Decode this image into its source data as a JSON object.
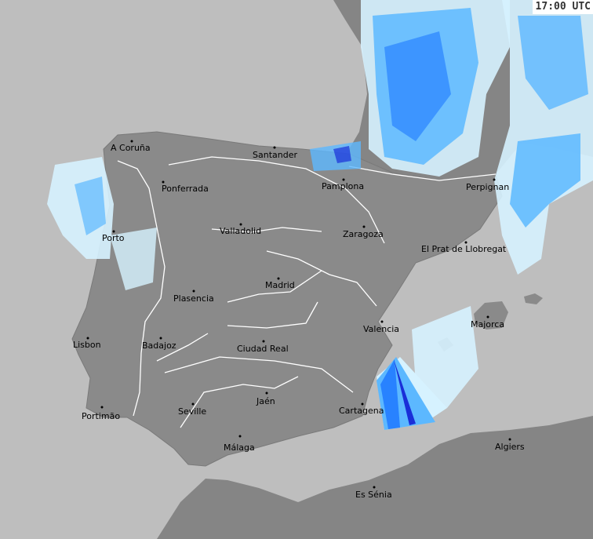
{
  "timestamp": "17:00 UTC",
  "colors": {
    "sea": "#bebebe",
    "land": "#8a8a8a",
    "land_other": "#858585",
    "border": "#ffffff",
    "radar_light": "#d6f2ff",
    "radar_mid": "#5cb8ff",
    "radar_strong": "#1e78ff",
    "radar_heavy": "#1a2fd8"
  },
  "cities": [
    {
      "name": "A Coruña"
    },
    {
      "name": "Santander"
    },
    {
      "name": "Ponferrada"
    },
    {
      "name": "Pamplona"
    },
    {
      "name": "Perpignan"
    },
    {
      "name": "Valladolid"
    },
    {
      "name": "Zaragoza"
    },
    {
      "name": "Porto"
    },
    {
      "name": "El Prat de Llobregat"
    },
    {
      "name": "Madrid"
    },
    {
      "name": "Plasencia"
    },
    {
      "name": "Majorca"
    },
    {
      "name": "Valencia"
    },
    {
      "name": "Lisbon"
    },
    {
      "name": "Badajoz"
    },
    {
      "name": "Ciudad Real"
    },
    {
      "name": "Jaén"
    },
    {
      "name": "Seville"
    },
    {
      "name": "Portimão"
    },
    {
      "name": "Cartagena"
    },
    {
      "name": "Málaga"
    },
    {
      "name": "Algiers"
    },
    {
      "name": "Es Sénia"
    }
  ]
}
